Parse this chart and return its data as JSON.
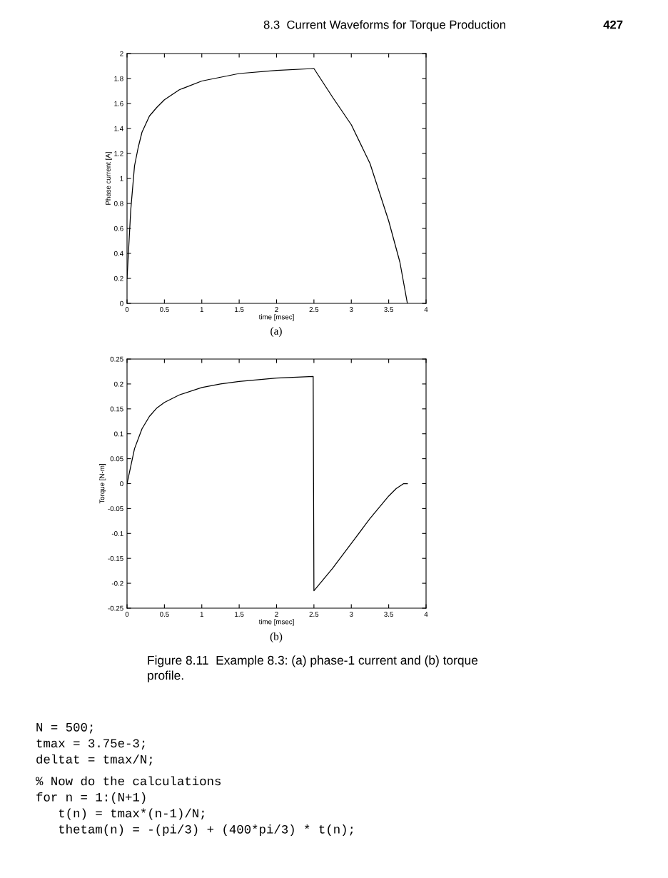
{
  "chart_data": [
    {
      "type": "line",
      "ylabel": "Phase current [A]",
      "xlabel": "time [msec]",
      "annotations": [
        "8.3  Current Waveforms for Torque Production",
        "427",
        "(a)"
      ],
      "x": [
        0,
        0.05,
        0.1,
        0.15,
        0.2,
        0.3,
        0.4,
        0.5,
        0.7,
        1,
        1.25,
        1.5,
        2,
        2.5,
        2.75,
        3,
        3.25,
        3.5,
        3.65,
        3.75
      ],
      "series": [
        {
          "color": "#000000",
          "values": [
            0.2,
            0.75,
            1.1,
            1.25,
            1.37,
            1.5,
            1.57,
            1.63,
            1.71,
            1.78,
            1.81,
            1.84,
            1.865,
            1.88,
            1.65,
            1.43,
            1.12,
            0.66,
            0.33,
            0
          ]
        }
      ],
      "xlim": [
        0,
        4
      ],
      "xticks": [
        0,
        0.5,
        1,
        1.5,
        2,
        2.5,
        3,
        3.5,
        4
      ],
      "ylim": [
        0,
        2
      ],
      "yticks": [
        0,
        0.2,
        0.4,
        0.6,
        0.8,
        1,
        1.2,
        1.4,
        1.6,
        1.8,
        2
      ],
      "grid": false,
      "legend": false
    },
    {
      "type": "line",
      "ylabel": "Torque [N-m]",
      "xlabel": "time [msec]",
      "annotations": [
        "(b)",
        "Figure 8.11  Example 8.3: (a) phase-1 current and (b) torque\nprofile.",
        "N = 500;",
        "tmax = 3.75e-3;",
        "deltat = tmax/N;",
        "% Now do the calculations",
        "for n = 1:(N+1)",
        "   t(n) = tmax*(n-1)/N;",
        "   thetam(n) = -(pi/3) + (400*pi/3) * t(n);"
      ],
      "x": [
        0,
        0.05,
        0.1,
        0.2,
        0.3,
        0.4,
        0.5,
        0.7,
        1,
        1.25,
        1.5,
        2,
        2.49,
        2.5,
        2.75,
        3,
        3.25,
        3.5,
        3.6,
        3.7,
        3.75
      ],
      "series": [
        {
          "color": "#000000",
          "values": [
            0,
            0.035,
            0.07,
            0.11,
            0.135,
            0.152,
            0.163,
            0.178,
            0.193,
            0.2,
            0.205,
            0.212,
            0.215,
            -0.215,
            -0.17,
            -0.12,
            -0.07,
            -0.025,
            -0.01,
            0,
            0
          ]
        }
      ],
      "xlim": [
        0,
        4
      ],
      "xticks": [
        0,
        0.5,
        1,
        1.5,
        2,
        2.5,
        3,
        3.5,
        4
      ],
      "ylim": [
        -0.25,
        0.25
      ],
      "yticks": [
        -0.25,
        -0.2,
        -0.15,
        -0.1,
        -0.05,
        0,
        0.05,
        0.1,
        0.15,
        0.2,
        0.25
      ],
      "grid": false,
      "legend": false
    }
  ]
}
